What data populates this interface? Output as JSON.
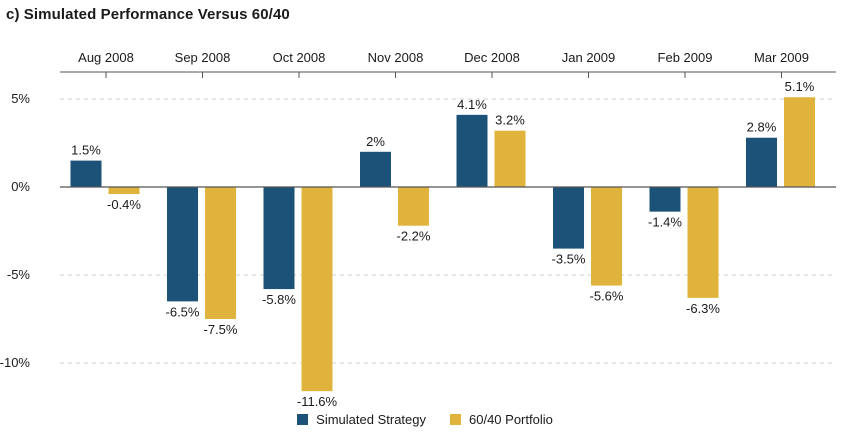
{
  "title": "c) Simulated Performance Versus 60/40",
  "colors": {
    "strategy": "#1c5278",
    "portfolio": "#e0b43c",
    "axis": "#555555",
    "grid": "#cfcfcf"
  },
  "chart_data": {
    "type": "bar",
    "title": "c) Simulated Performance Versus 60/40",
    "categories": [
      "Aug 2008",
      "Sep 2008",
      "Oct 2008",
      "Nov 2008",
      "Dec 2008",
      "Jan 2009",
      "Feb 2009",
      "Mar 2009"
    ],
    "series": [
      {
        "name": "Simulated Strategy",
        "values": [
          1.5,
          -6.5,
          -5.8,
          2,
          4.1,
          -3.5,
          -1.4,
          2.8
        ],
        "labels": [
          "1.5%",
          "-6.5%",
          "-5.8%",
          "2%",
          "4.1%",
          "-3.5%",
          "-1.4%",
          "2.8%"
        ]
      },
      {
        "name": "60/40 Portfolio",
        "values": [
          -0.4,
          -7.5,
          -11.6,
          -2.2,
          3.2,
          -5.6,
          -6.3,
          5.1
        ],
        "labels": [
          "-0.4%",
          "-7.5%",
          "-11.6%",
          "-2.2%",
          "3.2%",
          "-5.6%",
          "-6.3%",
          "5.1%"
        ]
      }
    ],
    "yticks": [
      5,
      0,
      -5,
      -10
    ],
    "ytick_labels": [
      "5%",
      "0%",
      "-5%",
      "-10%"
    ],
    "ylim": [
      -12,
      6
    ],
    "xlabel": "",
    "ylabel": "",
    "category_axis_position": "top",
    "grid": "horizontal dashed",
    "legend": "bottom-center"
  }
}
